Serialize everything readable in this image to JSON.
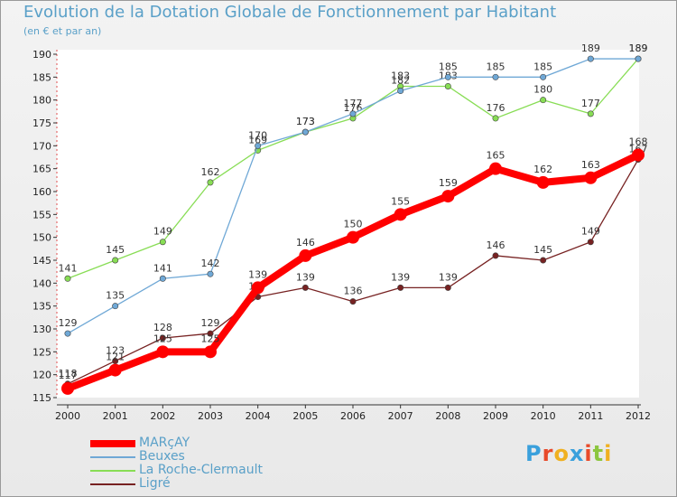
{
  "header": {
    "title": "Evolution de la Dotation Globale de Fonctionnement par Habitant",
    "subtitle": "(en € et par an)"
  },
  "logo": {
    "text": "Proxiti",
    "letter_colors": [
      "#3aa0dc",
      "#e84a2a",
      "#f0b020",
      "#3aa0dc",
      "#e84a2a",
      "#8cc63f",
      "#f0b020"
    ]
  },
  "chart_data": {
    "type": "line",
    "x": [
      "2000",
      "2001",
      "2002",
      "2003",
      "2004",
      "2005",
      "2006",
      "2007",
      "2008",
      "2009",
      "2010",
      "2011",
      "2012"
    ],
    "ylim": [
      115,
      190
    ],
    "yticks": [
      115,
      120,
      125,
      130,
      135,
      140,
      145,
      150,
      155,
      160,
      165,
      170,
      175,
      180,
      185,
      190
    ],
    "grid": false,
    "legend_placement": "bottom-left",
    "series": [
      {
        "name": "MARçAY",
        "color": "#ff0000",
        "values": [
          117,
          121,
          125,
          125,
          139,
          146,
          150,
          155,
          159,
          165,
          162,
          163,
          168
        ]
      },
      {
        "name": "Beuxes",
        "color": "#6fa8d6",
        "values": [
          129,
          135,
          141,
          142,
          170,
          173,
          177,
          182,
          185,
          185,
          185,
          189,
          189
        ]
      },
      {
        "name": "La Roche-Clermault",
        "color": "#88dd55",
        "values": [
          141,
          145,
          149,
          162,
          169,
          173,
          176,
          183,
          183,
          176,
          180,
          177,
          189
        ]
      },
      {
        "name": "Ligré",
        "color": "#772222",
        "values": [
          118,
          123,
          128,
          129,
          137,
          139,
          136,
          139,
          139,
          146,
          145,
          149,
          167
        ]
      }
    ]
  }
}
